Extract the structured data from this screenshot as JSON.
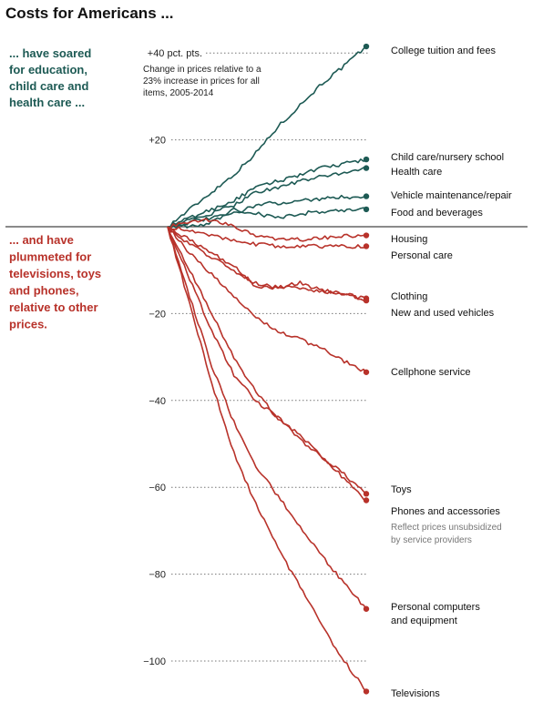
{
  "chart_data": {
    "type": "line",
    "title": "Costs for Americans ...",
    "annotation_up": [
      "... have soared",
      "for education,",
      "child care and",
      "health care ..."
    ],
    "annotation_down": [
      "... and have",
      "plummeted for",
      "televisions, toys",
      "and phones,",
      "relative to other",
      "prices."
    ],
    "note": [
      "Change in prices relative to a",
      "23% increase in prices for all",
      "items, 2005-2014"
    ],
    "x_range": [
      2005,
      2014
    ],
    "ylim": [
      -110,
      45
    ],
    "yticks": [
      {
        "value": 40,
        "label": "+40 pct. pts."
      },
      {
        "value": 20,
        "label": "+20"
      },
      {
        "value": 0,
        "label": ""
      },
      {
        "value": -20,
        "label": "−20"
      },
      {
        "value": -40,
        "label": "−40"
      },
      {
        "value": -60,
        "label": "−60"
      },
      {
        "value": -80,
        "label": "−80"
      },
      {
        "value": -100,
        "label": "−100"
      }
    ],
    "colors": {
      "up": "#1d5a54",
      "down": "#b8322a",
      "zero": "#444444"
    },
    "series": [
      {
        "name": "College tuition and fees",
        "lines": [
          "College tuition and fees"
        ],
        "end": 41.5,
        "dir": "up",
        "path": [
          [
            2005,
            0
          ],
          [
            2006,
            4
          ],
          [
            2007,
            8
          ],
          [
            2008,
            12
          ],
          [
            2009,
            17
          ],
          [
            2010,
            23
          ],
          [
            2011,
            28
          ],
          [
            2012,
            33
          ],
          [
            2013,
            37
          ],
          [
            2014,
            41.5
          ]
        ]
      },
      {
        "name": "Child care/nursery school",
        "lines": [
          "Child care/nursery school"
        ],
        "end": 15.5,
        "dir": "up",
        "path": [
          [
            2005,
            0
          ],
          [
            2006,
            2
          ],
          [
            2007,
            4
          ],
          [
            2008,
            6
          ],
          [
            2009,
            9
          ],
          [
            2010,
            10.5
          ],
          [
            2011,
            12
          ],
          [
            2012,
            13.5
          ],
          [
            2013,
            14.5
          ],
          [
            2014,
            15.5
          ]
        ]
      },
      {
        "name": "Health care",
        "lines": [
          "Health care"
        ],
        "end": 13.5,
        "dir": "up",
        "path": [
          [
            2005,
            0
          ],
          [
            2006,
            1.5
          ],
          [
            2007,
            3
          ],
          [
            2008,
            5
          ],
          [
            2009,
            8
          ],
          [
            2010,
            9
          ],
          [
            2011,
            10.5
          ],
          [
            2012,
            11.5
          ],
          [
            2013,
            12.5
          ],
          [
            2014,
            13.5
          ]
        ]
      },
      {
        "name": "Vehicle maintenance/repair",
        "lines": [
          "Vehicle maintenance/repair"
        ],
        "end": 7,
        "dir": "up",
        "path": [
          [
            2005,
            0
          ],
          [
            2006,
            1
          ],
          [
            2007,
            2
          ],
          [
            2008,
            3
          ],
          [
            2009,
            5
          ],
          [
            2010,
            5.5
          ],
          [
            2011,
            6
          ],
          [
            2012,
            6.5
          ],
          [
            2013,
            6.8
          ],
          [
            2014,
            7
          ]
        ]
      },
      {
        "name": "Food and beverages",
        "lines": [
          "Food and beverages"
        ],
        "end": 4,
        "dir": "up",
        "path": [
          [
            2005,
            0
          ],
          [
            2006,
            0
          ],
          [
            2007,
            1
          ],
          [
            2008,
            4
          ],
          [
            2009,
            3
          ],
          [
            2010,
            2
          ],
          [
            2011,
            3
          ],
          [
            2012,
            3.5
          ],
          [
            2013,
            3.8
          ],
          [
            2014,
            4
          ]
        ]
      },
      {
        "name": "Housing",
        "lines": [
          "Housing"
        ],
        "end": -2,
        "dir": "down",
        "path": [
          [
            2005,
            0
          ],
          [
            2006,
            1
          ],
          [
            2007,
            1.5
          ],
          [
            2008,
            0
          ],
          [
            2009,
            -2
          ],
          [
            2010,
            -3
          ],
          [
            2011,
            -3
          ],
          [
            2012,
            -2.5
          ],
          [
            2013,
            -2.2
          ],
          [
            2014,
            -2
          ]
        ]
      },
      {
        "name": "Personal care",
        "lines": [
          "Personal care"
        ],
        "end": -4.5,
        "dir": "down",
        "path": [
          [
            2005,
            0
          ],
          [
            2006,
            -1
          ],
          [
            2007,
            -2
          ],
          [
            2008,
            -3
          ],
          [
            2009,
            -4
          ],
          [
            2010,
            -4.5
          ],
          [
            2011,
            -4.5
          ],
          [
            2012,
            -4.5
          ],
          [
            2013,
            -4.5
          ],
          [
            2014,
            -4.5
          ]
        ]
      },
      {
        "name": "Clothing",
        "lines": [
          "Clothing"
        ],
        "end": -16.5,
        "dir": "down",
        "path": [
          [
            2005,
            0
          ],
          [
            2006,
            -4
          ],
          [
            2007,
            -7
          ],
          [
            2008,
            -10
          ],
          [
            2009,
            -13
          ],
          [
            2010,
            -14
          ],
          [
            2011,
            -14
          ],
          [
            2012,
            -15
          ],
          [
            2013,
            -15.5
          ],
          [
            2014,
            -16.5
          ]
        ]
      },
      {
        "name": "New and used vehicles",
        "lines": [
          "New and used vehicles"
        ],
        "end": -17,
        "dir": "down",
        "path": [
          [
            2005,
            0
          ],
          [
            2006,
            -3
          ],
          [
            2007,
            -6
          ],
          [
            2008,
            -9
          ],
          [
            2009,
            -14
          ],
          [
            2010,
            -14
          ],
          [
            2011,
            -13
          ],
          [
            2012,
            -14.5
          ],
          [
            2013,
            -15.5
          ],
          [
            2014,
            -17
          ]
        ]
      },
      {
        "name": "Cellphone service",
        "lines": [
          "Cellphone service"
        ],
        "end": -33.5,
        "dir": "down",
        "path": [
          [
            2005,
            0
          ],
          [
            2006,
            -6
          ],
          [
            2007,
            -11
          ],
          [
            2008,
            -16
          ],
          [
            2009,
            -21
          ],
          [
            2010,
            -24
          ],
          [
            2011,
            -26
          ],
          [
            2012,
            -28
          ],
          [
            2013,
            -31
          ],
          [
            2014,
            -33.5
          ]
        ]
      },
      {
        "name": "Toys",
        "lines": [
          "Toys"
        ],
        "end": -61.5,
        "dir": "down",
        "path": [
          [
            2005,
            0
          ],
          [
            2006,
            -10
          ],
          [
            2007,
            -20
          ],
          [
            2008,
            -30
          ],
          [
            2009,
            -38
          ],
          [
            2010,
            -44
          ],
          [
            2011,
            -49
          ],
          [
            2012,
            -53
          ],
          [
            2013,
            -57
          ],
          [
            2014,
            -61.5
          ]
        ]
      },
      {
        "name": "Phones and accessories",
        "lines": [
          "Phones and accessories"
        ],
        "end": -63,
        "dir": "down",
        "note": [
          "Reflect prices unsubsidized",
          "by service providers"
        ],
        "path": [
          [
            2005,
            0
          ],
          [
            2006,
            -12
          ],
          [
            2007,
            -24
          ],
          [
            2008,
            -34
          ],
          [
            2009,
            -40
          ],
          [
            2010,
            -44
          ],
          [
            2011,
            -48
          ],
          [
            2012,
            -53
          ],
          [
            2013,
            -58
          ],
          [
            2014,
            -63
          ]
        ]
      },
      {
        "name": "Personal computers and equipment",
        "lines": [
          "Personal computers",
          "and equipment"
        ],
        "end": -88,
        "dir": "down",
        "path": [
          [
            2005,
            0
          ],
          [
            2006,
            -16
          ],
          [
            2007,
            -32
          ],
          [
            2008,
            -45
          ],
          [
            2009,
            -55
          ],
          [
            2010,
            -62
          ],
          [
            2011,
            -69
          ],
          [
            2012,
            -76
          ],
          [
            2013,
            -82
          ],
          [
            2014,
            -88
          ]
        ]
      },
      {
        "name": "Televisions",
        "lines": [
          "Televisions"
        ],
        "end": -107,
        "dir": "down",
        "path": [
          [
            2005,
            0
          ],
          [
            2006,
            -18
          ],
          [
            2007,
            -36
          ],
          [
            2008,
            -52
          ],
          [
            2009,
            -64
          ],
          [
            2010,
            -74
          ],
          [
            2011,
            -83
          ],
          [
            2012,
            -92
          ],
          [
            2013,
            -100
          ],
          [
            2014,
            -107
          ]
        ]
      }
    ]
  }
}
